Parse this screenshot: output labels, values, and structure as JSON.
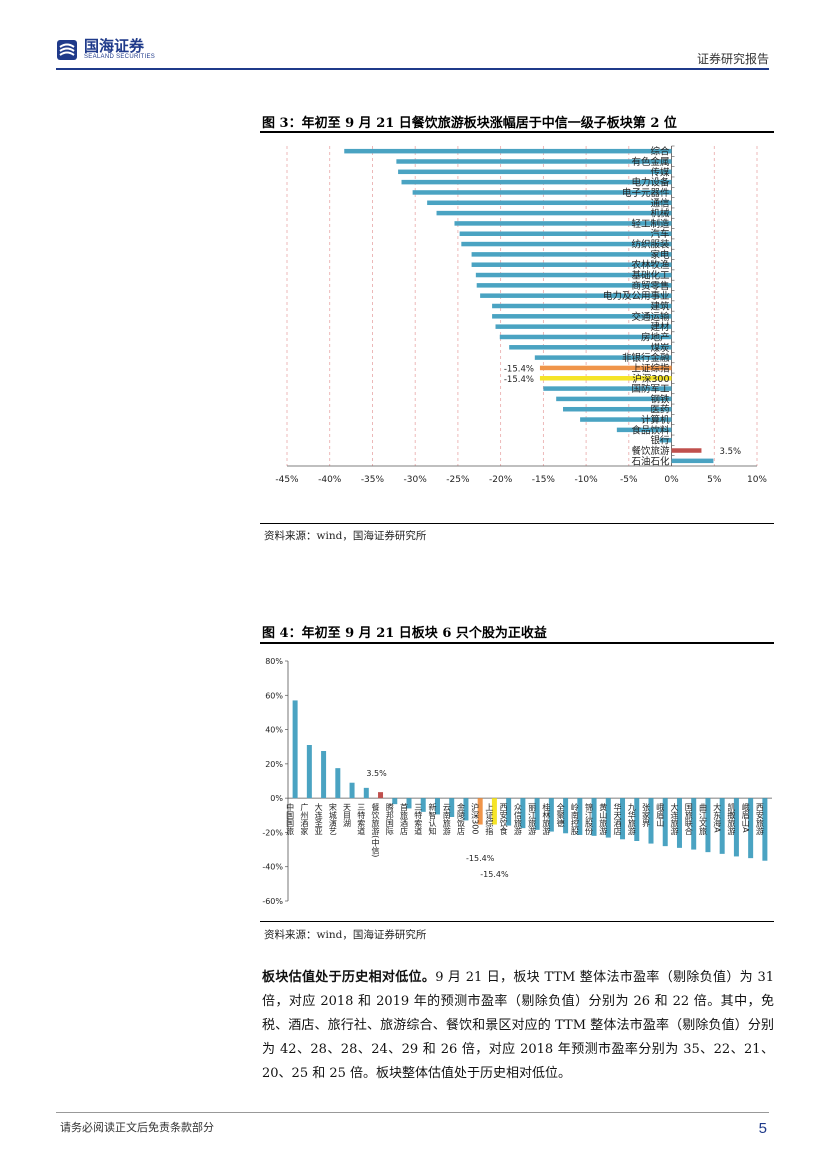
{
  "header": {
    "logo_cn": "国海证券",
    "logo_en": "SEALAND SECURITIES",
    "report_type": "证券研究报告"
  },
  "figure3": {
    "title": "图 3：年初至 9 月 21 日餐饮旅游板块涨幅居于中信一级子板块第 2 位",
    "source": "资料来源：wind，国海证券研究所"
  },
  "figure4": {
    "title": "图 4：年初至 9 月 21 日板块 6 只个股为正收益",
    "source": "资料来源：wind，国海证券研究所"
  },
  "body": {
    "lead": "板块估值处于历史相对低位。",
    "text": "9 月 21 日，板块 TTM 整体法市盈率（剔除负值）为 31 倍，对应 2018 和 2019 年的预测市盈率（剔除负值）分别为 26 和 22 倍。其中，免税、酒店、旅行社、旅游综合、餐饮和景区对应的 TTM 整体法市盈率（剔除负值）分别为 42、28、28、24、29 和 26 倍，对应 2018 年预测市盈率分别为 35、22、21、20、25 和 25 倍。板块整体估值处于历史相对低位。"
  },
  "footer": {
    "disclaimer": "请务必阅读正文后免责条款部分",
    "page_number": "5"
  },
  "chart_data": [
    {
      "type": "bar",
      "orientation": "horizontal",
      "title": "图 3：年初至 9 月 21 日餐饮旅游板块涨幅居于中信一级子板块第 2 位",
      "categories": [
        "综合",
        "有色金属",
        "传媒",
        "电力设备",
        "电子元器件",
        "通信",
        "机械",
        "轻工制造",
        "汽车",
        "纺织服装",
        "家电",
        "农林牧渔",
        "基础化工",
        "商贸零售",
        "电力及公用事业",
        "建筑",
        "交通运输",
        "建材",
        "房地产",
        "煤炭",
        "非银行金融",
        "上证综指",
        "沪深300",
        "国防军工",
        "钢铁",
        "医药",
        "计算机",
        "食品饮料",
        "银行",
        "餐饮旅游",
        "石油石化"
      ],
      "values": [
        -38.3,
        -32.2,
        -32.0,
        -31.6,
        -30.3,
        -28.6,
        -27.5,
        -25.4,
        -24.8,
        -24.6,
        -23.4,
        -23.4,
        -22.9,
        -22.8,
        -22.4,
        -21.0,
        -21.0,
        -20.6,
        -20.1,
        -19.0,
        -16.0,
        -15.4,
        -15.4,
        -15.0,
        -13.5,
        -12.7,
        -10.7,
        -6.4,
        -1.4,
        3.5,
        4.9
      ],
      "xlim": [
        -45,
        10
      ],
      "xticks": [
        "-45%",
        "-40%",
        "-35%",
        "-30%",
        "-25%",
        "-20%",
        "-15%",
        "-10%",
        "-5%",
        "0%",
        "5%",
        "10%"
      ],
      "data_labels": [
        {
          "category": "上证综指",
          "text": "-15.4%"
        },
        {
          "category": "沪深300",
          "text": "-15.4%"
        },
        {
          "category": "餐饮旅游",
          "text": "3.5%"
        }
      ],
      "colors": {
        "default": "#4aa3c2",
        "上证综指": "#f0954a",
        "沪深300": "#f5e428",
        "餐饮旅游": "#c0504d"
      }
    },
    {
      "type": "bar",
      "title": "图 4：年初至 9 月 21 日板块 6 只个股为正收益",
      "categories": [
        "中国国旅",
        "广州酒家",
        "大连圣亚",
        "宋城演艺",
        "天目湖",
        "三特索道",
        "餐饮旅游(中信)",
        "腾邦国际",
        "首旅酒店",
        "三特索道",
        "新智认知",
        "云南旅游",
        "金陵饭店",
        "沪深300",
        "上证综指",
        "西安饮食",
        "众信旅游",
        "丽江旅游",
        "桂林旅游",
        "全聚德",
        "岭南控股",
        "锦江股份",
        "黄山旅游",
        "华天酒店",
        "九华旅游",
        "张家界",
        "峨眉山",
        "大连旅游",
        "国旅联合",
        "曲江文旅",
        "大东海A",
        "凯撒旅游",
        "峨眉山A",
        "西安旅游"
      ],
      "values": [
        57,
        31,
        27.5,
        17.5,
        9,
        6,
        3.5,
        -3.5,
        -6,
        -8,
        -9.5,
        -11,
        -13,
        -15.4,
        -15.4,
        -16,
        -17.5,
        -18.5,
        -19.5,
        -20.5,
        -21.5,
        -22,
        -23,
        -24,
        -25,
        -26.5,
        -28,
        -29,
        -30,
        -31.5,
        -32.5,
        -34,
        -35,
        -36.5
      ],
      "ylim": [
        -60,
        80
      ],
      "yticks": [
        "80%",
        "60%",
        "40%",
        "20%",
        "0%",
        "-20%",
        "-40%",
        "-60%"
      ],
      "data_labels": [
        {
          "category": "餐饮旅游(中信)",
          "text": "3.5%"
        },
        {
          "category": "沪深300",
          "text": "-15.4%"
        },
        {
          "category": "上证综指",
          "text": "-15.4%"
        }
      ],
      "colors": {
        "default": "#4aa3c2",
        "沪深300": "#f0954a",
        "上证综指": "#f5e428",
        "餐饮旅游(中信)": "#c0504d"
      }
    }
  ]
}
